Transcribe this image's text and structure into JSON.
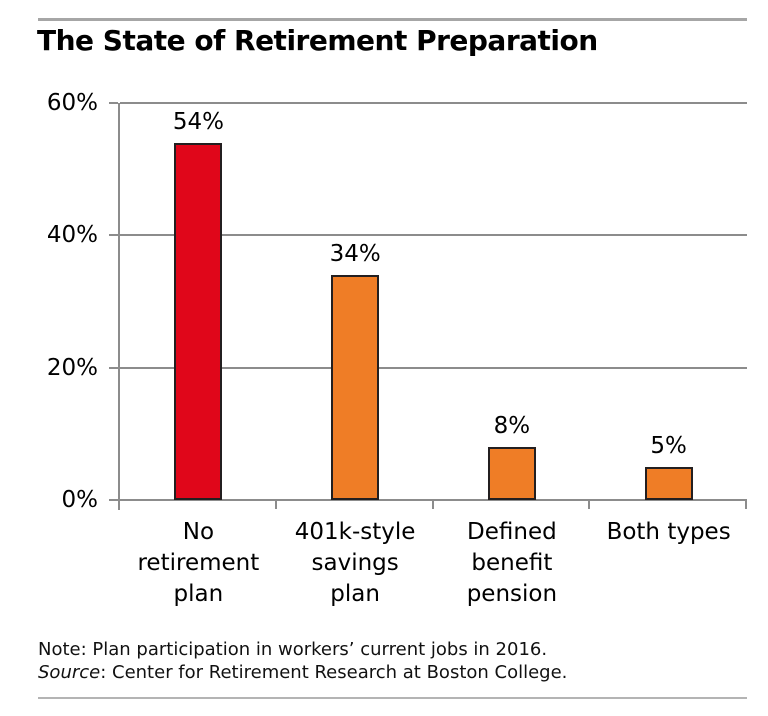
{
  "chart_data": {
    "type": "bar",
    "title": "The State of Retirement Preparation",
    "categories": [
      "No retirement plan",
      "401k-style savings plan",
      "Defined benefit pension",
      "Both types"
    ],
    "category_lines": [
      [
        "No",
        "retirement",
        "plan"
      ],
      [
        "401k-style",
        "savings",
        "plan"
      ],
      [
        "Defined",
        "benefit",
        "pension"
      ],
      [
        "Both types"
      ]
    ],
    "values": [
      54,
      34,
      8,
      5
    ],
    "value_labels": [
      "54%",
      "34%",
      "8%",
      "5%"
    ],
    "bar_colors": [
      "#e0061a",
      "#ef7d26",
      "#ef7d26",
      "#ef7d26"
    ],
    "bar_outline_color": "#231f20",
    "y_ticks": [
      "60%",
      "40%",
      "20%",
      "0%"
    ],
    "y_tick_values": [
      60,
      40,
      20,
      0
    ],
    "ylim": [
      0,
      60
    ],
    "xlabel": "",
    "ylabel": "",
    "grid": true,
    "gridline_color": "#8c8c8c",
    "legend": "none"
  },
  "note": {
    "line1": "Note: Plan participation in workers’ current jobs in 2016.",
    "source_label": "Source",
    "source_rest": ": Center for Retirement Research at Boston College."
  },
  "frame": {
    "rule_color": "#a6a6a6"
  }
}
